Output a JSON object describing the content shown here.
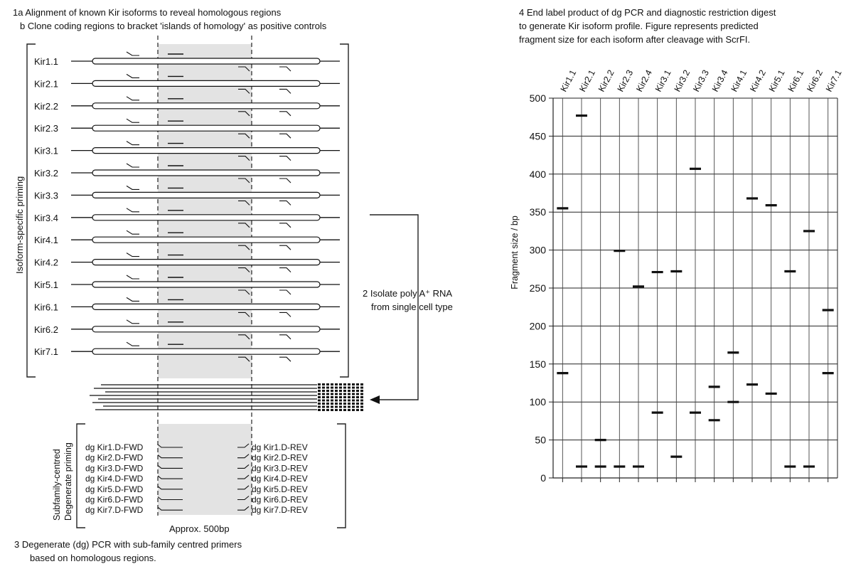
{
  "left": {
    "step1a": "1a Alignment of known Kir isoforms to reveal homologous regions",
    "step1b": "b Clone coding regions to bracket 'islands of homology' as positive controls",
    "isoform_axis_label": "Isoform-specific priming",
    "isoforms": [
      "Kir1.1",
      "Kir2.1",
      "Kir2.2",
      "Kir2.3",
      "Kir3.1",
      "Kir3.2",
      "Kir3.3",
      "Kir3.4",
      "Kir4.1",
      "Kir4.2",
      "Kir5.1",
      "Kir6.1",
      "Kir6.2",
      "Kir7.1"
    ],
    "step2_line1": "2 Isolate poly A⁺ RNA",
    "step2_line2": "from single cell type",
    "degenerate_axis_line1": "Subfamily-centred",
    "degenerate_axis_line2": "Degenerate priming",
    "fwd_primers": [
      "dg Kir1.D-FWD",
      "dg Kir2.D-FWD",
      "dg Kir3.D-FWD",
      "dg Kir4.D-FWD",
      "dg Kir5.D-FWD",
      "dg Kir6.D-FWD",
      "dg Kir7.D-FWD"
    ],
    "rev_primers": [
      "dg Kir1.D-REV",
      "dg Kir2.D-REV",
      "dg Kir3.D-REV",
      "dg Kir4.D-REV",
      "dg Kir5.D-REV",
      "dg Kir6.D-REV",
      "dg Kir7.D-REV"
    ],
    "approx_label": "Approx. 500bp",
    "step3_line1": "3 Degenerate (dg) PCR with sub-family centred primers",
    "step3_line2": "based on homologous regions."
  },
  "right": {
    "step4_line1": "4 End label product of dg PCR and diagnostic restriction digest",
    "step4_line2": "to generate Kir isoform profile. Figure represents predicted",
    "step4_line3": "fragment size for each isoform after cleavage with ScrFI."
  },
  "chart_data": {
    "type": "scatter",
    "categories": [
      "Kir1.1",
      "Kir2.1",
      "Kir2.2",
      "Kir2.3",
      "Kir2.4",
      "Kir3.1",
      "Kir3.2",
      "Kir3.3",
      "Kir3.4",
      "Kir4.1",
      "Kir4.2",
      "Kir5.1",
      "Kir6.1",
      "Kir6.2",
      "Kir7.1"
    ],
    "fragments": [
      [
        355,
        138
      ],
      [
        477,
        15
      ],
      [
        50,
        15
      ],
      [
        299,
        15
      ],
      [
        252,
        15
      ],
      [
        271,
        86
      ],
      [
        272,
        28
      ],
      [
        407,
        86
      ],
      [
        120,
        76
      ],
      [
        165,
        100
      ],
      [
        368,
        123
      ],
      [
        359,
        111
      ],
      [
        272,
        15
      ],
      [
        325,
        15
      ],
      [
        221,
        138
      ]
    ],
    "ylabel": "Fragment size / bp",
    "yticks": [
      0,
      50,
      100,
      150,
      200,
      250,
      300,
      350,
      400,
      450,
      500
    ],
    "ylim": [
      0,
      500
    ],
    "grid": true
  }
}
